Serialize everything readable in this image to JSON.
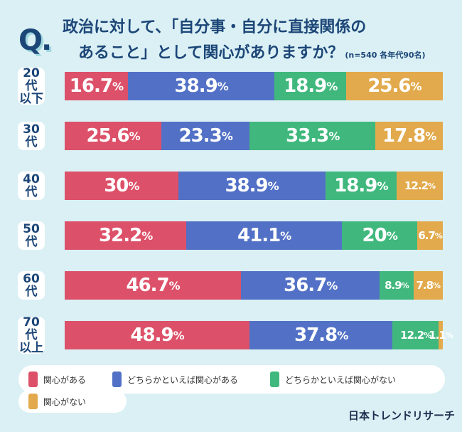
{
  "header": {
    "q_mark": "Q.",
    "title_line1": "政治に対して、「自分事・自分に直接関係の",
    "title_line2": "あること」として関心がありますか？",
    "note": "(n=540 各年代90名)"
  },
  "chart_data": {
    "type": "bar",
    "orientation": "horizontal-stacked-100",
    "categories": [
      [
        "20代",
        "以下"
      ],
      [
        "30代"
      ],
      [
        "40代"
      ],
      [
        "50代"
      ],
      [
        "60代"
      ],
      [
        "70代",
        "以上"
      ]
    ],
    "series": [
      {
        "name": "関心がある",
        "color": "#dc5169",
        "values": [
          16.7,
          25.6,
          30,
          32.2,
          46.7,
          48.9
        ]
      },
      {
        "name": "どちらかといえば関心がある",
        "color": "#5271c6",
        "values": [
          38.9,
          23.3,
          38.9,
          41.1,
          36.7,
          37.8
        ]
      },
      {
        "name": "どちらかといえば関心がない",
        "color": "#40b87d",
        "values": [
          18.9,
          33.3,
          18.9,
          20,
          8.9,
          12.2
        ]
      },
      {
        "name": "関心がない",
        "color": "#e2aa4c",
        "values": [
          25.6,
          17.8,
          12.2,
          6.7,
          7.8,
          1.1
        ]
      }
    ],
    "unit": "%",
    "legend": "bottom"
  },
  "footer": {
    "logo": "日本トレンドリサーチ"
  }
}
